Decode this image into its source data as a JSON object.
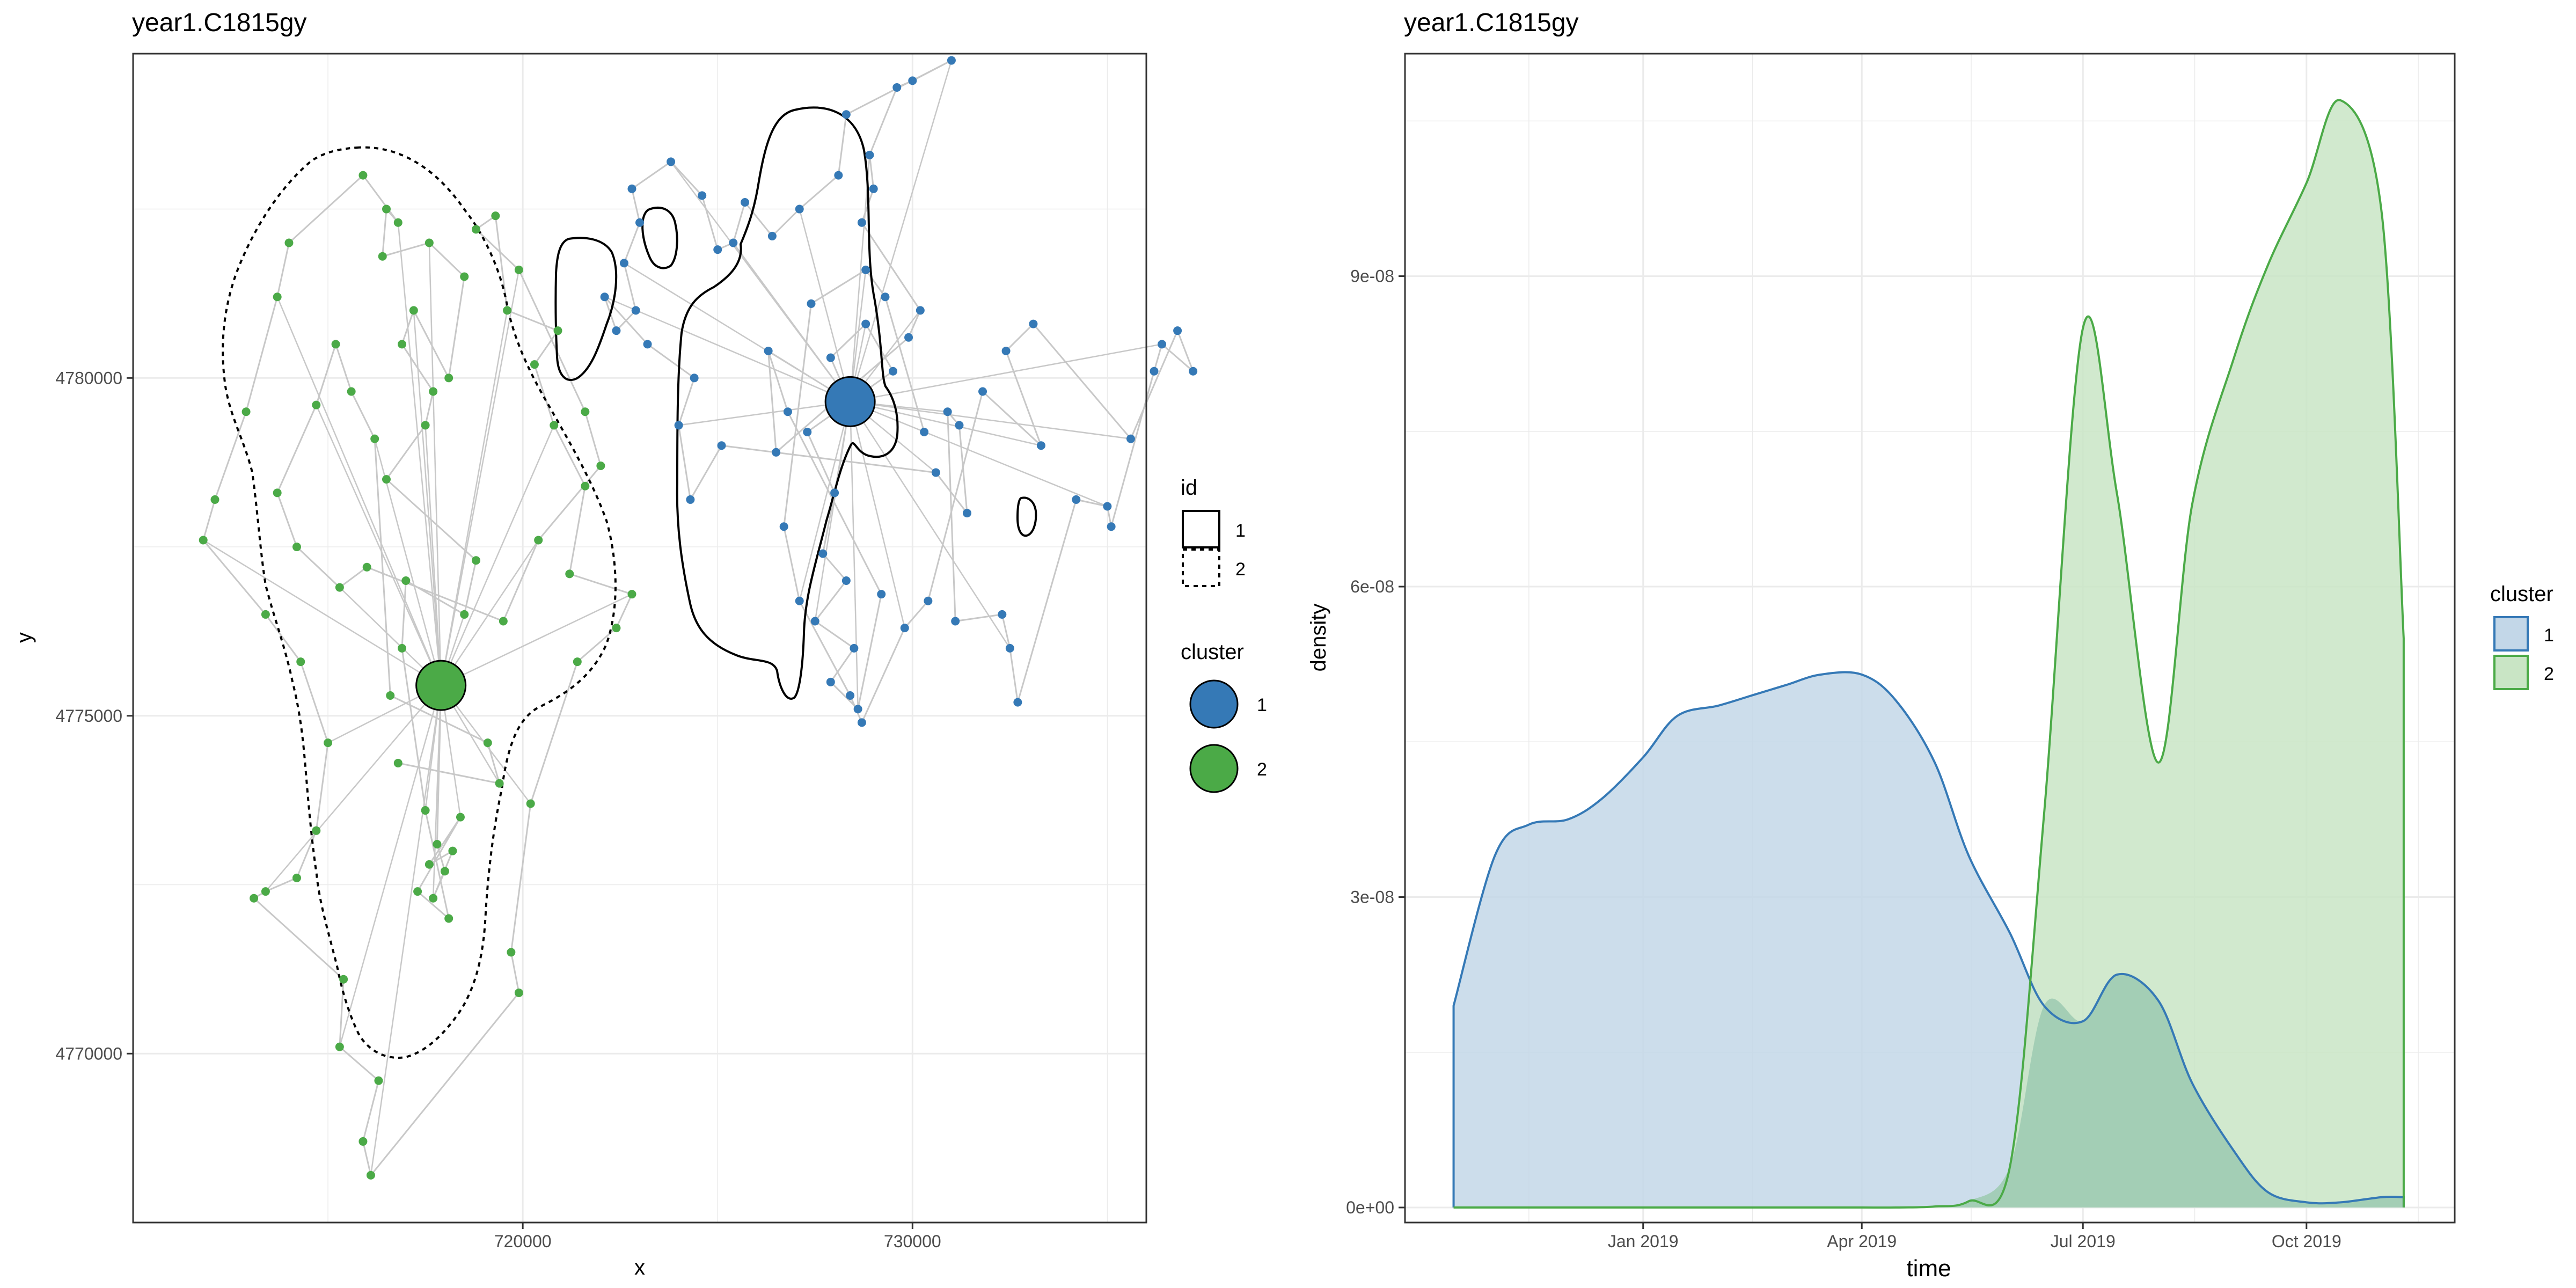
{
  "colors": {
    "cluster1": "#3579B6",
    "cluster2": "#4BAA47",
    "track": "#C8C8C8",
    "grid": "#EBEBEB",
    "frame": "#333333",
    "cluster1_fill": "#C3D7E8",
    "cluster2_fill": "#C9E5C5",
    "overlap_fill": "#9ECBB3"
  },
  "left_plot": {
    "title": "year1.C1815gy",
    "xlabel": "x",
    "ylabel": "y",
    "x_ticks": [
      "720000",
      "730000"
    ],
    "y_ticks": [
      "4770000",
      "4775000",
      "4780000"
    ],
    "legend_id": {
      "title": "id",
      "items": [
        {
          "label": "1",
          "line": "solid"
        },
        {
          "label": "2",
          "line": "dotted"
        }
      ]
    },
    "legend_cluster": {
      "title": "cluster",
      "items": [
        {
          "label": "1",
          "color": "#3579B6"
        },
        {
          "label": "2",
          "color": "#4BAA47"
        }
      ]
    }
  },
  "right_plot": {
    "title": "year1.C1815gy",
    "xlabel": "time",
    "ylabel": "density",
    "x_ticks": [
      "Jan 2019",
      "Apr 2019",
      "Jul 2019",
      "Oct 2019"
    ],
    "y_ticks": [
      "0e+00",
      "3e-08",
      "6e-08",
      "9e-08"
    ],
    "legend": {
      "title": "cluster",
      "items": [
        {
          "label": "1",
          "color": "#3579B6",
          "fill": "#C3D7E8"
        },
        {
          "label": "2",
          "color": "#4BAA47",
          "fill": "#C9E5C5"
        }
      ]
    }
  },
  "chart_data": [
    {
      "type": "scatter",
      "title": "year1.C1815gy",
      "xlabel": "x",
      "ylabel": "y",
      "xlim": [
        710000,
        736000
      ],
      "ylim": [
        4767500,
        4784800
      ],
      "grid": true,
      "centroids": [
        {
          "cluster": "1",
          "x": 728400,
          "y": 4779650
        },
        {
          "cluster": "2",
          "x": 717900,
          "y": 4775450
        }
      ],
      "series": [
        {
          "name": "1",
          "points": [
            [
              728600,
              4779500
            ],
            [
              728200,
              4779900
            ],
            [
              727900,
              4780300
            ],
            [
              728800,
              4780800
            ],
            [
              729500,
              4780100
            ],
            [
              727300,
              4779200
            ],
            [
              728000,
              4778300
            ],
            [
              727700,
              4777400
            ],
            [
              728300,
              4777000
            ],
            [
              727500,
              4776400
            ],
            [
              728500,
              4776000
            ],
            [
              727900,
              4775500
            ],
            [
              728600,
              4775100
            ],
            [
              729200,
              4776800
            ],
            [
              726800,
              4779500
            ],
            [
              726300,
              4780400
            ],
            [
              726500,
              4778900
            ],
            [
              729900,
              4780600
            ],
            [
              730200,
              4781000
            ],
            [
              728700,
              4782300
            ],
            [
              729000,
              4782800
            ],
            [
              728900,
              4783300
            ],
            [
              729600,
              4784300
            ],
            [
              730000,
              4784400
            ],
            [
              731000,
              4784700
            ],
            [
              728300,
              4783900
            ],
            [
              728100,
              4783000
            ],
            [
              727100,
              4782500
            ],
            [
              726400,
              4782100
            ],
            [
              725700,
              4782600
            ],
            [
              725400,
              4782000
            ],
            [
              725000,
              4781900
            ],
            [
              724600,
              4782700
            ],
            [
              723800,
              4783200
            ],
            [
              722800,
              4782800
            ],
            [
              723000,
              4782300
            ],
            [
              722600,
              4781700
            ],
            [
              722900,
              4781000
            ],
            [
              722400,
              4780700
            ],
            [
              722100,
              4781200
            ],
            [
              723200,
              4780500
            ],
            [
              724400,
              4780000
            ],
            [
              724000,
              4779300
            ],
            [
              724300,
              4778200
            ],
            [
              725100,
              4779000
            ],
            [
              730600,
              4778600
            ],
            [
              731400,
              4778000
            ],
            [
              731200,
              4779300
            ],
            [
              730900,
              4779500
            ],
            [
              731100,
              4776400
            ],
            [
              732300,
              4776500
            ],
            [
              732500,
              4776000
            ],
            [
              732700,
              4775200
            ],
            [
              734200,
              4778200
            ],
            [
              735000,
              4778100
            ],
            [
              735100,
              4777800
            ],
            [
              736200,
              4780100
            ],
            [
              736400,
              4780500
            ],
            [
              737200,
              4780100
            ],
            [
              736800,
              4780700
            ],
            [
              735600,
              4779100
            ],
            [
              733100,
              4780800
            ],
            [
              732400,
              4780400
            ],
            [
              733300,
              4779000
            ],
            [
              731800,
              4779800
            ],
            [
              730400,
              4776700
            ],
            [
              729800,
              4776300
            ],
            [
              728700,
              4774900
            ],
            [
              728400,
              4775300
            ],
            [
              727100,
              4776700
            ],
            [
              726700,
              4777800
            ],
            [
              727400,
              4781100
            ],
            [
              728800,
              4781600
            ],
            [
              729300,
              4781200
            ],
            [
              730300,
              4779200
            ]
          ]
        },
        {
          "name": "2",
          "points": [
            [
              717900,
              4775400
            ],
            [
              717800,
              4773100
            ],
            [
              718000,
              4772700
            ],
            [
              717700,
              4772300
            ],
            [
              718200,
              4773000
            ],
            [
              717600,
              4772800
            ],
            [
              718400,
              4773500
            ],
            [
              717300,
              4772400
            ],
            [
              718100,
              4772000
            ],
            [
              717500,
              4773600
            ],
            [
              716900,
              4776000
            ],
            [
              717000,
              4777000
            ],
            [
              718500,
              4776500
            ],
            [
              718800,
              4777300
            ],
            [
              716500,
              4778500
            ],
            [
              717500,
              4779300
            ],
            [
              717700,
              4779800
            ],
            [
              716900,
              4780500
            ],
            [
              717200,
              4781000
            ],
            [
              718100,
              4780000
            ],
            [
              718500,
              4781500
            ],
            [
              717600,
              4782000
            ],
            [
              716400,
              4781800
            ],
            [
              716500,
              4782500
            ],
            [
              716800,
              4782300
            ],
            [
              715900,
              4783000
            ],
            [
              714000,
              4782000
            ],
            [
              713700,
              4781200
            ],
            [
              712900,
              4779500
            ],
            [
              712100,
              4778200
            ],
            [
              711800,
              4777600
            ],
            [
              713400,
              4776500
            ],
            [
              714300,
              4775800
            ],
            [
              715000,
              4774600
            ],
            [
              714700,
              4773300
            ],
            [
              714200,
              4772600
            ],
            [
              713400,
              4772400
            ],
            [
              713100,
              4772300
            ],
            [
              715400,
              4771100
            ],
            [
              715300,
              4770100
            ],
            [
              716300,
              4769600
            ],
            [
              715900,
              4768700
            ],
            [
              716100,
              4768200
            ],
            [
              719900,
              4770900
            ],
            [
              719700,
              4771500
            ],
            [
              720200,
              4773700
            ],
            [
              721400,
              4775800
            ],
            [
              722400,
              4776300
            ],
            [
              722800,
              4776800
            ],
            [
              721200,
              4777100
            ],
            [
              721600,
              4778400
            ],
            [
              720800,
              4779300
            ],
            [
              720300,
              4780200
            ],
            [
              720900,
              4780700
            ],
            [
              719600,
              4781000
            ],
            [
              719300,
              4782400
            ],
            [
              718800,
              4782200
            ],
            [
              719900,
              4781600
            ],
            [
              721600,
              4779500
            ],
            [
              722000,
              4778700
            ],
            [
              720400,
              4777600
            ],
            [
              719500,
              4776400
            ],
            [
              716000,
              4777200
            ],
            [
              715300,
              4776900
            ],
            [
              714200,
              4777500
            ],
            [
              713700,
              4778300
            ],
            [
              714700,
              4779600
            ],
            [
              715200,
              4780500
            ],
            [
              715600,
              4779800
            ],
            [
              716200,
              4779100
            ],
            [
              716600,
              4775300
            ],
            [
              719100,
              4774600
            ],
            [
              719400,
              4774000
            ],
            [
              716800,
              4774300
            ]
          ]
        }
      ],
      "legend": {
        "id": [
          "1",
          "2"
        ],
        "cluster": [
          "1",
          "2"
        ],
        "position": "right"
      }
    },
    {
      "type": "area",
      "title": "year1.C1815gy",
      "xlabel": "time",
      "ylabel": "density",
      "x": [
        "2018-10-15",
        "2018-11-01",
        "2018-11-15",
        "2018-12-01",
        "2018-12-15",
        "2019-01-01",
        "2019-01-15",
        "2019-02-01",
        "2019-02-15",
        "2019-03-01",
        "2019-03-15",
        "2019-04-01",
        "2019-04-15",
        "2019-05-01",
        "2019-05-15",
        "2019-06-01",
        "2019-06-15",
        "2019-07-01",
        "2019-07-15",
        "2019-08-01",
        "2019-08-15",
        "2019-09-01",
        "2019-09-15",
        "2019-10-01",
        "2019-10-15",
        "2019-11-01",
        "2019-11-10"
      ],
      "series": [
        {
          "name": "1",
          "values": [
            1.95e-08,
            3.4e-08,
            3.7e-08,
            3.75e-08,
            3.95e-08,
            4.35e-08,
            4.75e-08,
            4.85e-08,
            4.95e-08,
            5.05e-08,
            5.15e-08,
            5.15e-08,
            4.9e-08,
            4.3e-08,
            3.4e-08,
            2.65e-08,
            1.95e-08,
            1.8e-08,
            2.25e-08,
            2e-08,
            1.2e-08,
            5.5e-09,
            1.5e-09,
            5e-10,
            5e-10,
            1e-09,
            1e-09
          ]
        },
        {
          "name": "2",
          "values": [
            0,
            0,
            0,
            0,
            0,
            0,
            0,
            0,
            0,
            0,
            0,
            0,
            0,
            1e-10,
            6e-10,
            4e-09,
            3.8e-08,
            8.5e-08,
            6.9e-08,
            4.3e-08,
            6.8e-08,
            8.2e-08,
            9.1e-08,
            9.9e-08,
            1.07e-07,
            9.6e-08,
            5.5e-08
          ]
        }
      ],
      "xlim": [
        "2018-10-15",
        "2019-11-10"
      ],
      "ylim": [
        0,
        1.1e-07
      ],
      "grid": true,
      "legend": {
        "position": "right"
      }
    }
  ]
}
